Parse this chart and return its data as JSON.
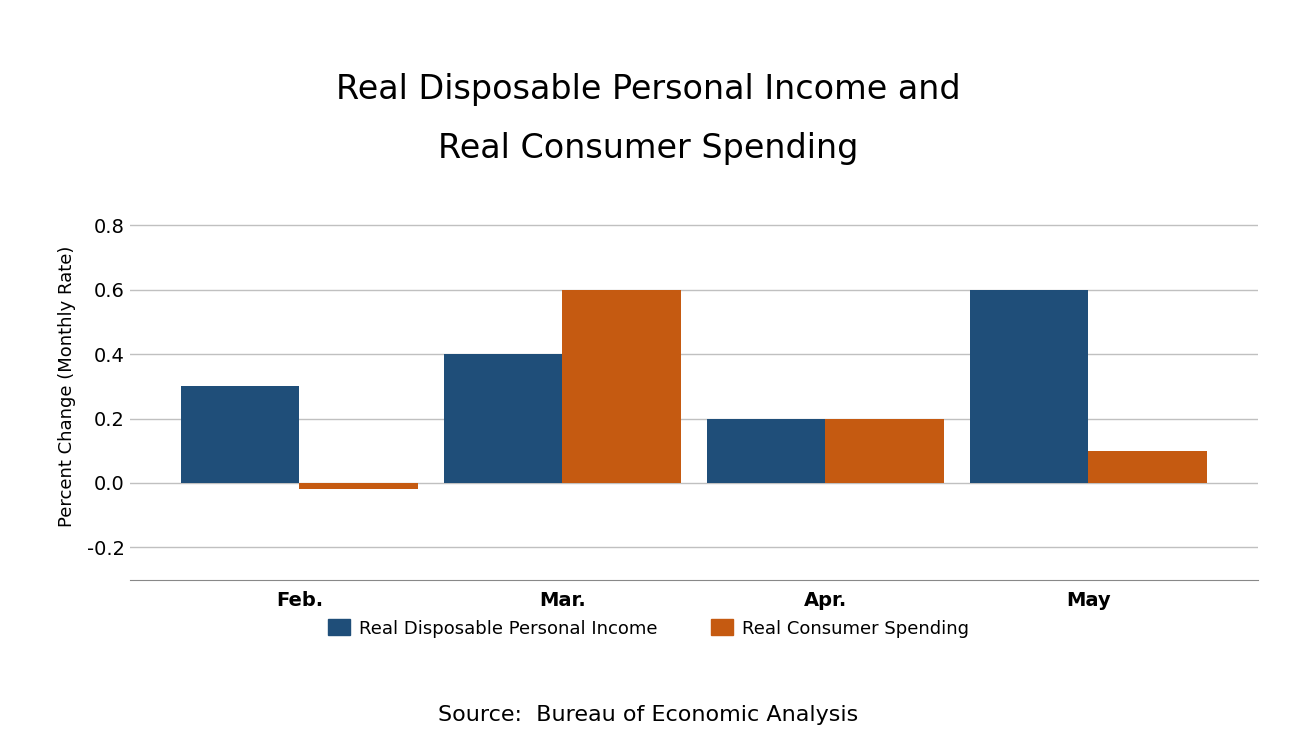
{
  "title_line1": "Real Disposable Personal Income and",
  "title_line2": "Real Consumer Spending",
  "categories": [
    "Feb.",
    "Mar.",
    "Apr.",
    "May"
  ],
  "income_values": [
    0.3,
    0.4,
    0.2,
    0.6
  ],
  "spending_values": [
    -0.02,
    0.6,
    0.2,
    0.1
  ],
  "income_color": "#1f4e79",
  "spending_color": "#c55a11",
  "ylabel": "Percent Change (Monthly Rate)",
  "ylim": [
    -0.3,
    0.9
  ],
  "yticks": [
    -0.2,
    0.0,
    0.2,
    0.4,
    0.6,
    0.8
  ],
  "legend_income": "Real Disposable Personal Income",
  "legend_spending": "Real Consumer Spending",
  "source_text": "Source:  Bureau of Economic Analysis",
  "bar_width": 0.45,
  "title_fontsize": 24,
  "label_fontsize": 13,
  "tick_fontsize": 14,
  "legend_fontsize": 13,
  "source_fontsize": 16,
  "background_color": "#ffffff"
}
